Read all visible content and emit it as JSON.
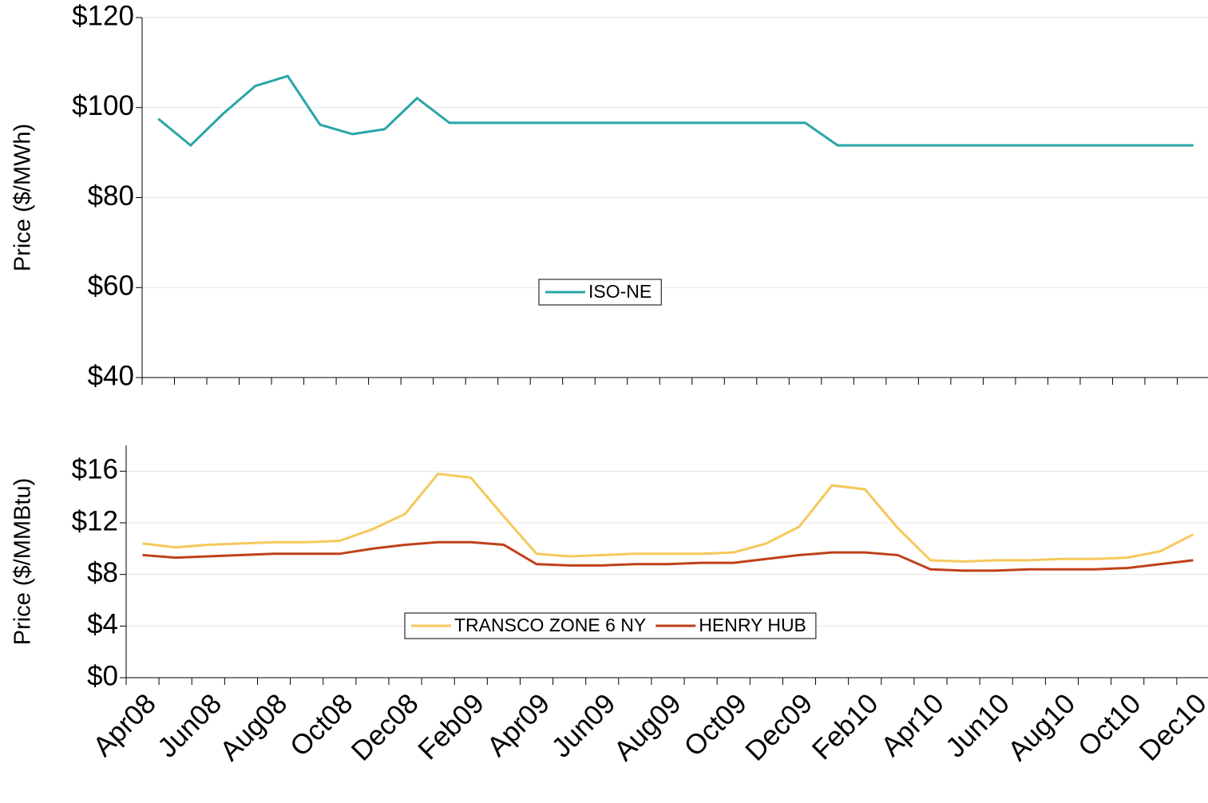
{
  "chart_data": [
    {
      "type": "line",
      "ylabel": "Price ($/MWh)",
      "grid": true,
      "ylim": [
        40,
        120
      ],
      "yticks": [
        {
          "value": 40,
          "label": "$40"
        },
        {
          "value": 60,
          "label": "$60"
        },
        {
          "value": 80,
          "label": "$80"
        },
        {
          "value": 100,
          "label": "$100"
        },
        {
          "value": 120,
          "label": "$120"
        }
      ],
      "series": [
        {
          "name": "ISO-NE",
          "color": "#2aa5a5",
          "values": [
            97.5,
            91.6,
            98.6,
            104.8,
            107,
            96.2,
            94.1,
            95.2,
            102.1,
            96.6,
            96.6,
            96.6,
            96.6,
            96.6,
            96.6,
            96.6,
            96.6,
            96.6,
            96.6,
            96.6,
            96.6,
            91.6,
            91.6,
            91.6,
            91.6,
            91.6,
            91.6,
            91.6,
            91.6,
            91.6,
            91.6,
            91.6,
            91.6
          ]
        }
      ]
    },
    {
      "type": "line",
      "ylabel": "Price ($/MMBtu)",
      "grid": true,
      "categories": [
        "Apr08",
        null,
        "Jun08",
        null,
        "Aug08",
        null,
        "Oct08",
        null,
        "Dec08",
        null,
        "Feb09",
        null,
        "Apr09",
        null,
        "Jun09",
        null,
        "Aug09",
        null,
        "Oct09",
        null,
        "Dec09",
        null,
        "Feb10",
        null,
        "Apr10",
        null,
        "Jun10",
        null,
        "Aug10",
        null,
        "Oct10",
        null,
        "Dec10"
      ],
      "ylim": [
        0,
        18
      ],
      "yticks": [
        {
          "value": 0,
          "label": "$0"
        },
        {
          "value": 4,
          "label": "$4"
        },
        {
          "value": 8,
          "label": "$8"
        },
        {
          "value": 12,
          "label": "$12"
        },
        {
          "value": 16,
          "label": "$16"
        }
      ],
      "series": [
        {
          "name": "TRANSCO ZONE 6 NY",
          "color": "#f5c85a",
          "values": [
            10.4,
            10.1,
            10.3,
            10.4,
            10.5,
            10.5,
            10.6,
            11.5,
            12.7,
            15.8,
            15.5,
            12.5,
            9.6,
            9.4,
            9.5,
            9.6,
            9.6,
            9.6,
            9.7,
            10.4,
            11.7,
            14.9,
            14.6,
            11.6,
            9.1,
            9.0,
            9.1,
            9.1,
            9.2,
            9.2,
            9.3,
            9.8,
            11.1
          ]
        },
        {
          "name": "HENRY HUB",
          "color": "#c0401a",
          "values": [
            9.5,
            9.3,
            9.4,
            9.5,
            9.6,
            9.6,
            9.6,
            10.0,
            10.3,
            10.5,
            10.5,
            10.3,
            8.8,
            8.7,
            8.7,
            8.8,
            8.8,
            8.9,
            8.9,
            9.2,
            9.5,
            9.7,
            9.7,
            9.5,
            8.4,
            8.3,
            8.3,
            8.4,
            8.4,
            8.4,
            8.5,
            8.8,
            9.1
          ]
        }
      ]
    }
  ]
}
